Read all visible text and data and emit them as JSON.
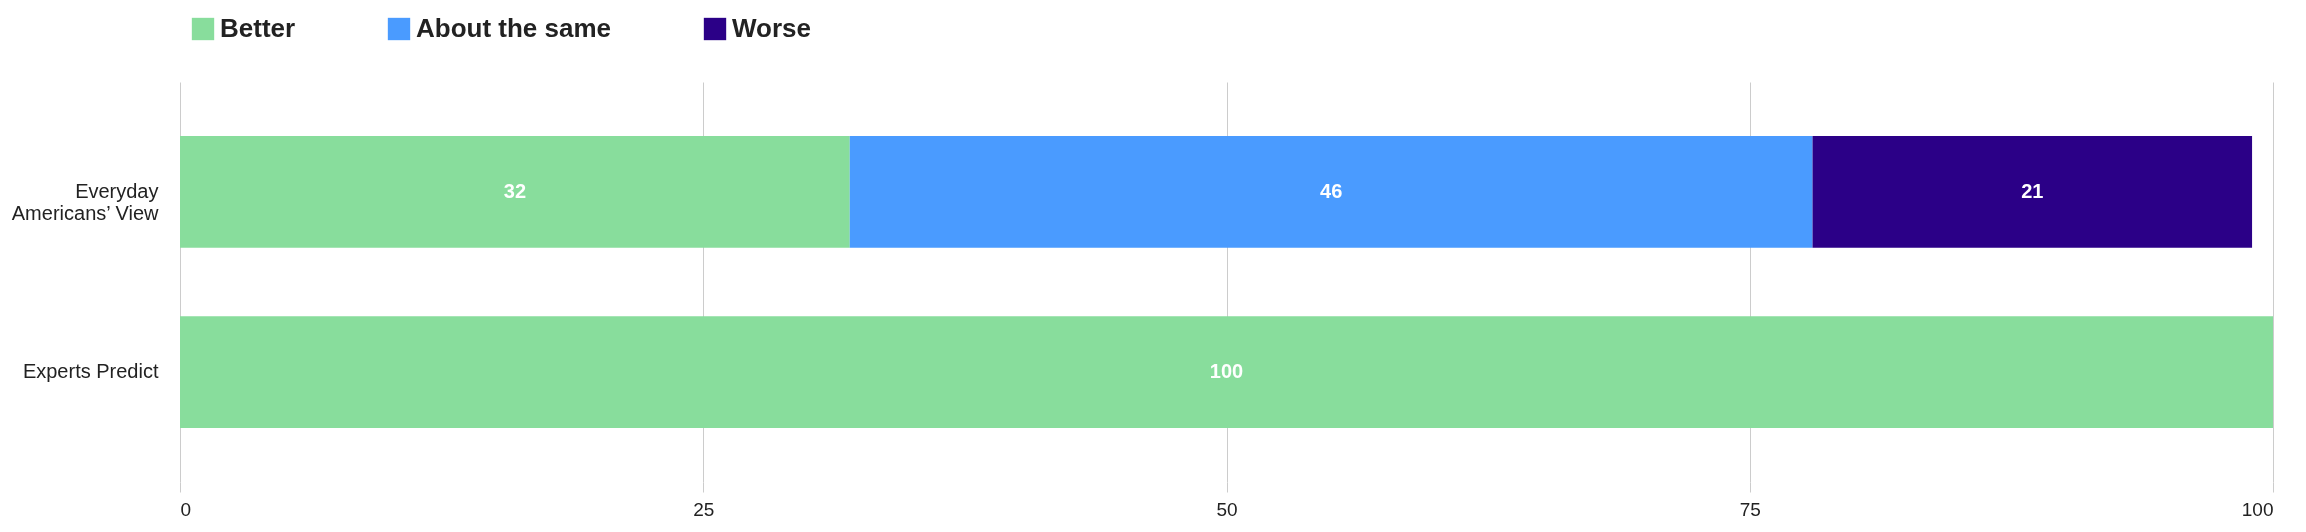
{
  "chart_data": {
    "type": "bar",
    "orientation": "horizontal",
    "stacked": true,
    "categories": [
      "Everyday Americans’ View",
      "Experts Predict"
    ],
    "series": [
      {
        "name": "Better",
        "color": "#88dd9c",
        "values": [
          32,
          100
        ]
      },
      {
        "name": "About the same",
        "color": "#4a9bff",
        "values": [
          46,
          null
        ]
      },
      {
        "name": "Worse",
        "color": "#2b0087",
        "values": [
          21,
          null
        ]
      }
    ],
    "data_labels": true,
    "xlim": [
      0,
      100
    ],
    "xticks": [
      0,
      25,
      50,
      75,
      100
    ],
    "grid": "x",
    "legend": "top"
  }
}
